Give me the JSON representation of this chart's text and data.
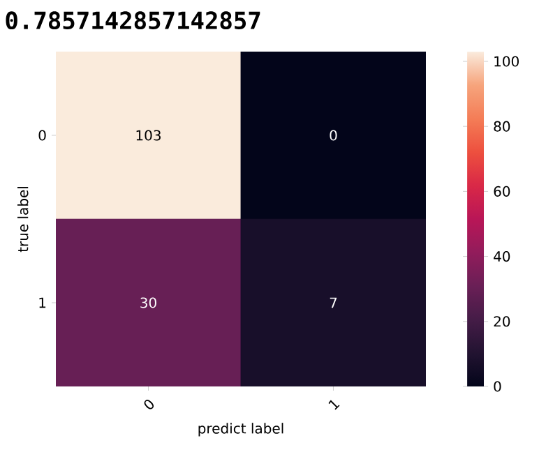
{
  "chart_data": {
    "type": "heatmap",
    "title": "0.7857142857142857",
    "xlabel": "predict label",
    "ylabel": "true label",
    "categories": [
      "0",
      "1"
    ],
    "y_categories": [
      "0",
      "1"
    ],
    "cells": [
      [
        103,
        0
      ],
      [
        30,
        7
      ]
    ],
    "clim": [
      0,
      103
    ],
    "cticks": [
      0,
      20,
      40,
      60,
      80,
      100
    ],
    "data_labels": true
  }
}
